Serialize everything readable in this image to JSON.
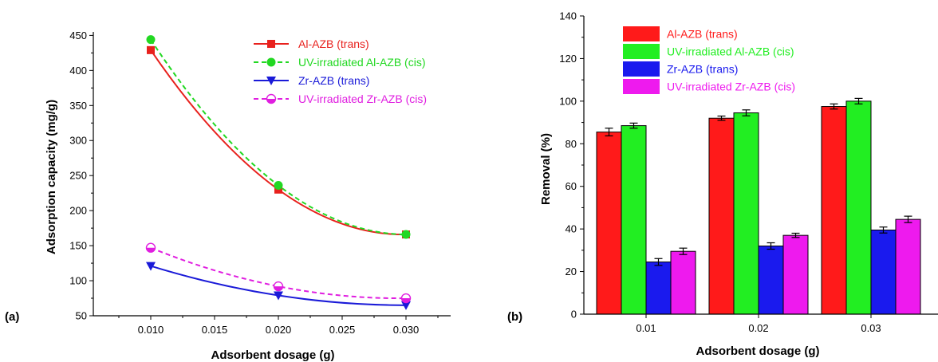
{
  "chart_data": [
    {
      "type": "line",
      "panel_label": "(a)",
      "xlabel": "Adsorbent dosage (g)",
      "ylabel": "Adsorption capacity (mg/g)",
      "x": [
        0.01,
        0.02,
        0.03
      ],
      "x_ticks": [
        "0.010",
        "0.015",
        "0.020",
        "0.025",
        "0.030"
      ],
      "y_ticks": [
        "50",
        "100",
        "150",
        "200",
        "250",
        "300",
        "350",
        "400",
        "450"
      ],
      "xlim": [
        0.0055,
        0.0335
      ],
      "ylim": [
        50,
        455
      ],
      "legend_position": "top-right",
      "series": [
        {
          "name": "Al-AZB (trans)",
          "values": [
            429,
            230,
            166
          ],
          "color": "#e8211d",
          "dash": "solid",
          "marker": "square"
        },
        {
          "name": "UV-irradiated Al-AZB (cis)",
          "values": [
            444,
            236,
            166
          ],
          "color": "#22d822",
          "dash": "dashed",
          "marker": "circle"
        },
        {
          "name": "Zr-AZB (trans)",
          "values": [
            121,
            79,
            65
          ],
          "color": "#1a1ad8",
          "dash": "solid",
          "marker": "triangle-down"
        },
        {
          "name": "UV-irradiated Zr-AZB (cis)",
          "values": [
            147,
            92,
            75
          ],
          "color": "#e01ee0",
          "dash": "dashed",
          "marker": "half-circle"
        }
      ]
    },
    {
      "type": "bar",
      "panel_label": "(b)",
      "xlabel": "Adsorbent dosage (g)",
      "ylabel": "Removal (%)",
      "categories": [
        "0.01",
        "0.02",
        "0.03"
      ],
      "y_ticks": [
        "0",
        "20",
        "40",
        "60",
        "80",
        "100",
        "120",
        "140"
      ],
      "ylim": [
        0,
        140
      ],
      "error_bars": true,
      "legend_position": "top-left",
      "series": [
        {
          "name": "Al-AZB (trans)",
          "values": [
            85.5,
            92,
            97.5
          ],
          "errors": [
            1.8,
            1.0,
            1.2
          ],
          "color": "#ff1a1a"
        },
        {
          "name": "UV-irradiated Al-AZB (cis)",
          "values": [
            88.5,
            94.5,
            100
          ],
          "errors": [
            1.2,
            1.4,
            1.3
          ],
          "color": "#22ee22"
        },
        {
          "name": "Zr-AZB (trans)",
          "values": [
            24.5,
            32,
            39.5
          ],
          "errors": [
            1.6,
            1.5,
            1.4
          ],
          "color": "#1a1aee"
        },
        {
          "name": "UV-irradiated Zr-AZB (cis)",
          "values": [
            29.5,
            37,
            44.5
          ],
          "errors": [
            1.5,
            1.0,
            1.5
          ],
          "color": "#ee1aee"
        }
      ]
    }
  ]
}
